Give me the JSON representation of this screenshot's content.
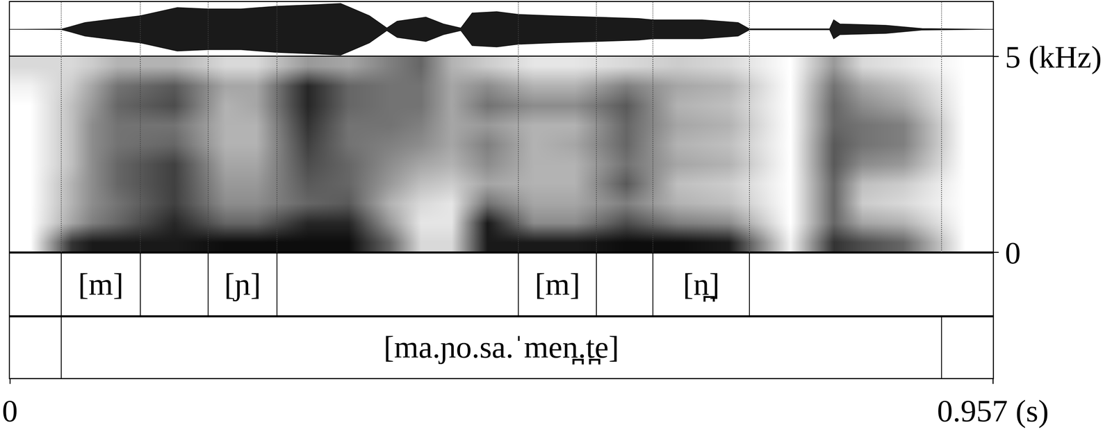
{
  "chart_data": {
    "type": "spectrogram",
    "xlim": [
      0,
      0.957
    ],
    "xticks": [
      0,
      {
        "value": 0.957,
        "label": "0.957 (s)"
      }
    ],
    "waveform": {
      "ylim": [
        -1,
        1
      ],
      "x": [
        0,
        0.05,
        0.059,
        0.073,
        0.094,
        0.127,
        0.163,
        0.193,
        0.225,
        0.26,
        0.294,
        0.322,
        0.35,
        0.367,
        0.377,
        0.405,
        0.422,
        0.439,
        0.45,
        0.474,
        0.495,
        0.529,
        0.571,
        0.612,
        0.626,
        0.674,
        0.709,
        0.72,
        0.798,
        0.802,
        0.808,
        0.853,
        0.888,
        0.957
      ],
      "envelope": [
        0,
        0.01,
        0.1,
        0.25,
        0.35,
        0.5,
        0.8,
        0.75,
        0.75,
        0.85,
        0.9,
        0.95,
        0.5,
        0.05,
        0.3,
        0.45,
        0.2,
        0.05,
        0.6,
        0.65,
        0.55,
        0.5,
        0.45,
        0.4,
        0.35,
        0.35,
        0.25,
        0.02,
        0.02,
        0.35,
        0.2,
        0.15,
        0.03,
        0
      ]
    },
    "spectrogram": {
      "ylim": [
        0,
        5
      ],
      "yticks": [
        0,
        {
          "value": 5,
          "label": "5 (kHz)"
        }
      ],
      "intensity_range": [
        0,
        1
      ],
      "x": [
        0.02,
        0.06,
        0.08,
        0.105,
        0.16,
        0.21,
        0.24,
        0.29,
        0.33,
        0.37,
        0.4,
        0.43,
        0.465,
        0.51,
        0.55,
        0.6,
        0.65,
        0.7,
        0.76,
        0.802,
        0.83,
        0.87,
        0.93
      ],
      "y": [
        0.25,
        0.75,
        1.25,
        1.75,
        2.25,
        2.75,
        3.25,
        3.75,
        4.25,
        4.75
      ],
      "z": [
        [
          0,
          0.8,
          0.9,
          0.9,
          0.9,
          0.95,
          0.95,
          0.95,
          0.95,
          0.6,
          0.15,
          0.15,
          0.9,
          0.9,
          0.9,
          0.95,
          0.95,
          0.9,
          0.05,
          0.8,
          0.7,
          0.6,
          0
        ],
        [
          0,
          0.35,
          0.5,
          0.6,
          0.85,
          0.6,
          0.6,
          0.85,
          0.85,
          0.4,
          0.1,
          0.1,
          0.9,
          0.45,
          0.45,
          0.7,
          0.5,
          0.45,
          0,
          0.6,
          0.35,
          0.3,
          0
        ],
        [
          0,
          0.3,
          0.45,
          0.55,
          0.75,
          0.45,
          0.45,
          0.6,
          0.65,
          0.3,
          0.15,
          0.1,
          0.55,
          0.35,
          0.35,
          0.5,
          0.3,
          0.25,
          0,
          0.6,
          0.2,
          0.15,
          0
        ],
        [
          0,
          0.3,
          0.45,
          0.6,
          0.75,
          0.4,
          0.4,
          0.65,
          0.6,
          0.4,
          0.25,
          0.2,
          0.35,
          0.3,
          0.3,
          0.65,
          0.25,
          0.2,
          0,
          0.6,
          0.25,
          0.2,
          0
        ],
        [
          0,
          0.25,
          0.45,
          0.6,
          0.75,
          0.35,
          0.35,
          0.7,
          0.6,
          0.45,
          0.35,
          0.3,
          0.45,
          0.3,
          0.3,
          0.55,
          0.35,
          0.3,
          0,
          0.65,
          0.45,
          0.4,
          0
        ],
        [
          0,
          0.25,
          0.45,
          0.55,
          0.6,
          0.3,
          0.3,
          0.75,
          0.55,
          0.5,
          0.45,
          0.35,
          0.5,
          0.3,
          0.35,
          0.6,
          0.3,
          0.25,
          0,
          0.65,
          0.55,
          0.5,
          0
        ],
        [
          0,
          0.25,
          0.45,
          0.55,
          0.55,
          0.3,
          0.3,
          0.8,
          0.55,
          0.55,
          0.5,
          0.35,
          0.4,
          0.3,
          0.3,
          0.6,
          0.35,
          0.3,
          0,
          0.6,
          0.55,
          0.5,
          0
        ],
        [
          0,
          0.25,
          0.4,
          0.6,
          0.7,
          0.3,
          0.35,
          0.85,
          0.6,
          0.55,
          0.55,
          0.35,
          0.55,
          0.45,
          0.45,
          0.65,
          0.3,
          0.25,
          0,
          0.6,
          0.45,
          0.35,
          0
        ],
        [
          0.05,
          0.2,
          0.35,
          0.55,
          0.65,
          0.35,
          0.35,
          0.85,
          0.6,
          0.55,
          0.55,
          0.35,
          0.45,
          0.3,
          0.3,
          0.5,
          0.35,
          0.3,
          0,
          0.55,
          0.35,
          0.25,
          0
        ],
        [
          0.15,
          0.15,
          0.2,
          0.3,
          0.3,
          0.15,
          0.15,
          0.4,
          0.35,
          0.5,
          0.6,
          0.3,
          0.2,
          0.1,
          0.1,
          0.15,
          0.2,
          0.15,
          0,
          0.4,
          0.15,
          0.1,
          0
        ]
      ]
    },
    "tiers": [
      {
        "intervals": [
          {
            "start": 0.05,
            "end": 0.127,
            "label": "[m]"
          },
          {
            "start": 0.193,
            "end": 0.26,
            "label": "[ɲ]"
          },
          {
            "start": 0.495,
            "end": 0.571,
            "label": "[m]"
          },
          {
            "start": 0.626,
            "end": 0.72,
            "label": "[n̪]"
          }
        ]
      },
      {
        "intervals": [
          {
            "start": 0.05,
            "end": 0.907,
            "label": "[ma.ɲo.sa.ˈmen̪.t̪e]"
          }
        ]
      }
    ]
  }
}
